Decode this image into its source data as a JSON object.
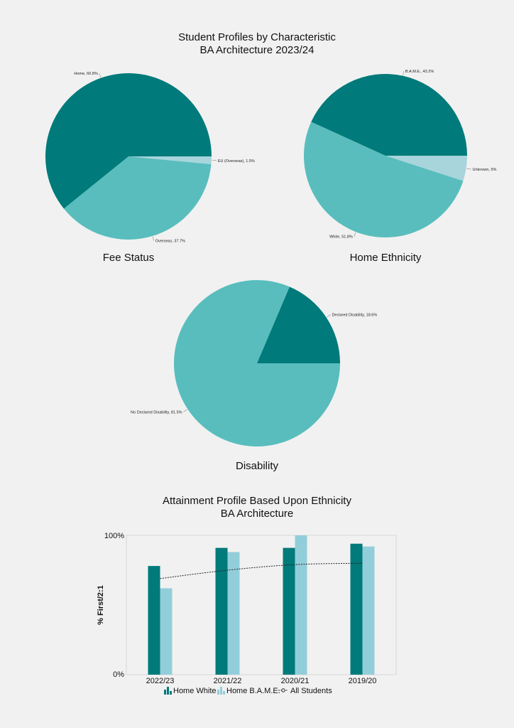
{
  "page": {
    "title_line1": "Student Profiles by Characteristic",
    "title_line2": "BA Architecture 2023/24"
  },
  "chart_data": [
    {
      "type": "pie",
      "title": "Fee Status",
      "slices": [
        {
          "label": "EU (Overseas), 1.5%",
          "value": 1.5,
          "color": "#a8d5dc"
        },
        {
          "label": "Overseas, 37.7%",
          "value": 37.7,
          "color": "#59bdbd"
        },
        {
          "label": "Home, 60.8%",
          "value": 60.8,
          "color": "#007a7a"
        }
      ]
    },
    {
      "type": "pie",
      "title": "Home Ethnicity",
      "slices": [
        {
          "label": "Unknown, 5%",
          "value": 5,
          "color": "#a8d5dc"
        },
        {
          "label": "White, 51.8%",
          "value": 51.8,
          "color": "#59bdbd"
        },
        {
          "label": "B.A.M.E., 43.2%",
          "value": 43.2,
          "color": "#007a7a"
        }
      ]
    },
    {
      "type": "pie",
      "title": "Disability",
      "slices": [
        {
          "label": "No Declared Disability, 81.5%",
          "value": 81.5,
          "color": "#59bdbd"
        },
        {
          "label": "Declared Disability, 18.6%",
          "value": 18.6,
          "color": "#007a7a"
        }
      ]
    },
    {
      "type": "bar",
      "title_line1": "Attainment Profile Based Upon Ethnicity",
      "title_line2": "BA Architecture",
      "ylabel": "% First/2:1",
      "ylim": [
        0,
        100
      ],
      "yticks": [
        "0%",
        "100%"
      ],
      "categories": [
        "2022/23",
        "2021/22",
        "2020/21",
        "2019/20"
      ],
      "series": [
        {
          "name": "Home White",
          "type": "bar",
          "color": "#007a7a",
          "values": [
            78,
            91,
            91,
            94
          ]
        },
        {
          "name": "Home B.A.M.E.",
          "type": "bar",
          "color": "#92ceda",
          "values": [
            62,
            88,
            100,
            92
          ]
        },
        {
          "name": "All Students",
          "type": "line",
          "color": "#222222",
          "values": [
            69,
            75,
            79,
            80
          ]
        }
      ],
      "grid": false,
      "legend_position": "bottom"
    }
  ]
}
